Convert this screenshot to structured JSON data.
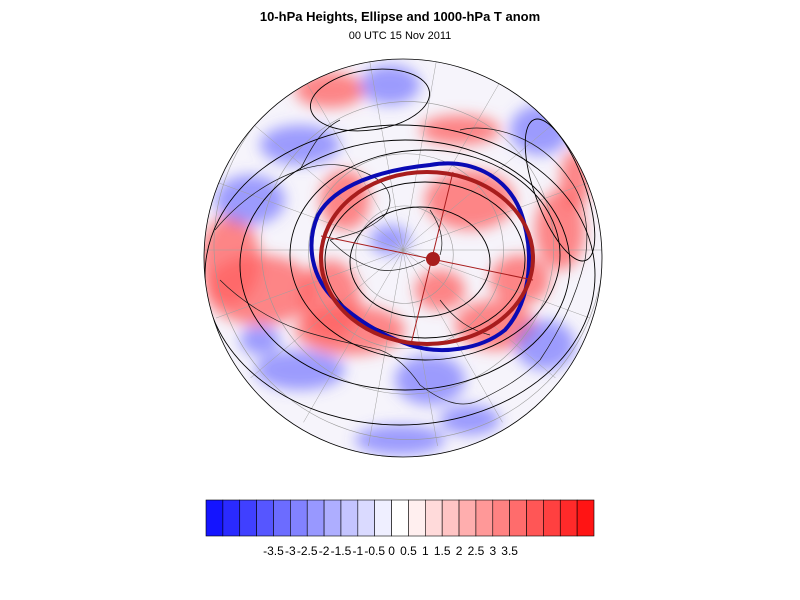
{
  "figure": {
    "title": "10-hPa Heights, Ellipse and 1000-hPa T anom",
    "subtitle": "00 UTC 15 Nov 2011"
  },
  "colorbar": {
    "colors": [
      "#1414ff",
      "#2a2aff",
      "#4040ff",
      "#5656ff",
      "#6c6cff",
      "#8282ff",
      "#9898ff",
      "#aeaeff",
      "#c4c4ff",
      "#dadaff",
      "#efefff",
      "#ffffff",
      "#ffefef",
      "#ffdada",
      "#ffc4c4",
      "#ffaeae",
      "#ff9898",
      "#ff8282",
      "#ff6c6c",
      "#ff5656",
      "#ff4040",
      "#ff2a2a",
      "#ff1414"
    ],
    "tick_labels": [
      "-3.5",
      "-3",
      "-2.5",
      "-2",
      "-1.5",
      "-1",
      "-0.5",
      "0",
      "0.5",
      "1",
      "1.5",
      "2",
      "2.5",
      "3",
      "3.5"
    ]
  },
  "map_colors": {
    "warm": "#ff6060",
    "cold": "#6060ff",
    "ellipse": "#a81d1d",
    "vortex_edge": "#0a0ab4",
    "contour": "#000000"
  }
}
